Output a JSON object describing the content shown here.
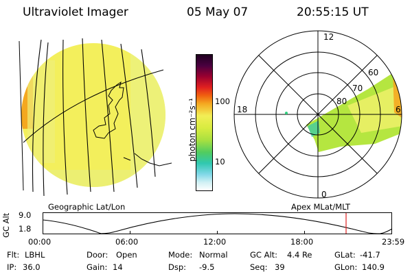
{
  "header": {
    "title": "Ultraviolet Imager",
    "date": "05 May 07",
    "time": "20:55:15 UT"
  },
  "left_panel": {
    "caption": "Geographic Lat/Lon"
  },
  "right_panel": {
    "caption": "Apex MLat/MLT",
    "mlt_labels": {
      "top": "12",
      "left": "18",
      "bottom": "0",
      "right": "6"
    },
    "lat_labels": [
      "60",
      "70",
      "80"
    ]
  },
  "colorbar": {
    "unit_label": "photon cm⁻²s⁻¹",
    "tick_100": "100",
    "tick_10": "10"
  },
  "orbit_plot": {
    "ylabel": "GC Alt",
    "y_top": "9.0",
    "y_bottom": "1.8",
    "x_ticks": [
      "00:00",
      "06:00",
      "12:00",
      "18:00",
      "23:59"
    ]
  },
  "status": {
    "flt_label": "Flt:",
    "flt_value": "LBHL",
    "ip_label": "IP:",
    "ip_value": "36.0",
    "door_label": "Door:",
    "door_value": "Open",
    "gain_label": "Gain:",
    "gain_value": "14",
    "mode_label": "Mode:",
    "mode_value": "Normal",
    "dsp_label": "Dsp:",
    "dsp_value": "-9.5",
    "gcalt_label": "GC Alt:",
    "gcalt_value": "4.4 Re",
    "seq_label": "Seq:",
    "seq_value": "39",
    "glat_label": "GLat:",
    "glat_value": "-41.7",
    "glon_label": "GLon:",
    "glon_value": "140.9"
  },
  "colors": {
    "earth_fill": "#f2ee56",
    "aurora_green": "#b5e640",
    "marker_red": "#e02020",
    "dot_green": "#30d080"
  }
}
